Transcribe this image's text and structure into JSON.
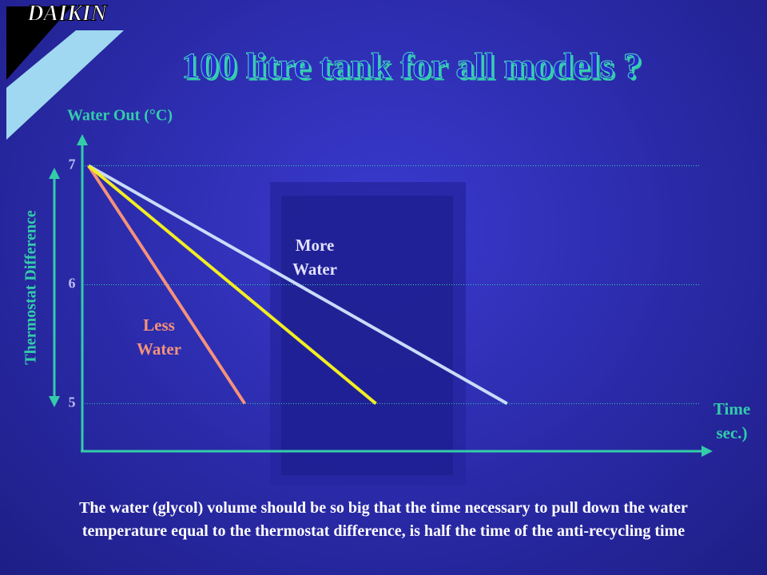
{
  "logo": "DAIKIN",
  "caption": "The water (glycol) volume should be so big that the time necessary to pull down the water temperature equal to the thermostat difference, is half the time of the anti-recycling time",
  "chart_data": {
    "type": "line",
    "title": "100 litre tank for all models ?",
    "y_label": "Water Out (°C)",
    "x_label": "Time sec.)",
    "annotation": "Thermostat Difference",
    "xlim": [
      0,
      100
    ],
    "ylim": [
      4.6,
      7.25
    ],
    "yticks": [
      5,
      6,
      7
    ],
    "grid": true,
    "series": [
      {
        "name": "Less Water",
        "color": "#f4927a",
        "x": [
          1,
          26
        ],
        "values": [
          7,
          5
        ]
      },
      {
        "name": "More Water",
        "color": "#c8dcf8",
        "x": [
          1,
          68
        ],
        "values": [
          7,
          5
        ]
      },
      {
        "color": "#f2ee22",
        "x": [
          1,
          47
        ],
        "values": [
          7,
          5
        ]
      }
    ]
  }
}
